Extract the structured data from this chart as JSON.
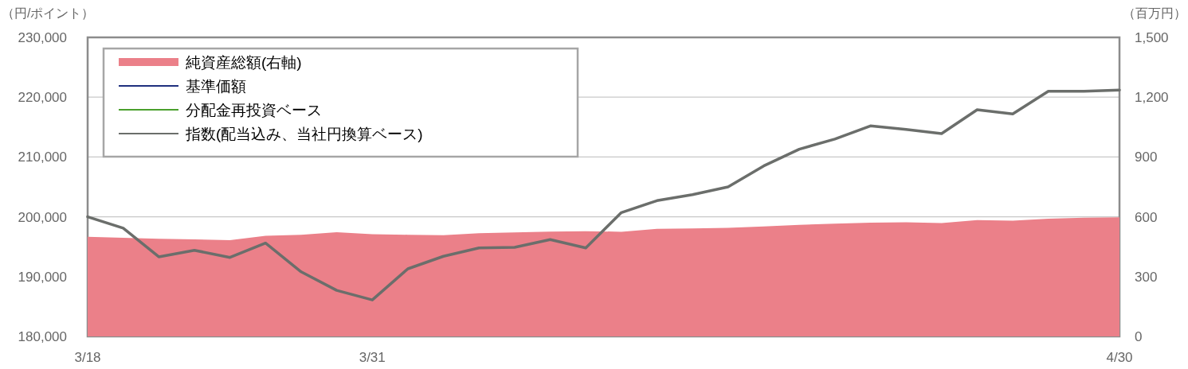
{
  "chart_data": {
    "type": "line",
    "ylabel": "（円/ポイント）",
    "y2label": "（百万円）",
    "categories": [
      "3/18",
      null,
      null,
      null,
      null,
      null,
      null,
      null,
      "3/31",
      null,
      null,
      null,
      null,
      null,
      null,
      null,
      null,
      null,
      null,
      null,
      null,
      null,
      null,
      null,
      null,
      null,
      null,
      null,
      null,
      "4/30"
    ],
    "ylim": [
      180000,
      230000
    ],
    "yticks": [
      {
        "value": 180000,
        "label": "180,000"
      },
      {
        "value": 190000,
        "label": "190,000"
      },
      {
        "value": 200000,
        "label": "200,000"
      },
      {
        "value": 210000,
        "label": "210,000"
      },
      {
        "value": 220000,
        "label": "220,000"
      },
      {
        "value": 230000,
        "label": "230,000"
      }
    ],
    "y2lim": [
      0,
      1500
    ],
    "y2ticks": [
      0,
      300,
      600,
      900,
      {
        "value": 1200,
        "label": "1,200"
      },
      {
        "value": 1500,
        "label": "1,500"
      }
    ],
    "grid": "y",
    "legend": "top left",
    "series": [
      {
        "name": "純資産総額(右軸)",
        "type": "area",
        "axis": "y2",
        "color": "#eb8089",
        "values": [
          500,
          495,
          490,
          487,
          483,
          505,
          510,
          523,
          513,
          510,
          508,
          518,
          522,
          526,
          528,
          525,
          540,
          542,
          545,
          552,
          560,
          565,
          570,
          572,
          568,
          583,
          580,
          590,
          595,
          597
        ]
      },
      {
        "name": "基準価額",
        "color": "#1f2f7e",
        "values": [
          null,
          null,
          null,
          null,
          null,
          null,
          null,
          null,
          null,
          null,
          null,
          null,
          null,
          null,
          null,
          null,
          null,
          null,
          null,
          null,
          null,
          null,
          null,
          null,
          null,
          null,
          null,
          null,
          null,
          null
        ]
      },
      {
        "name": "分配金再投資ベース",
        "color": "#4aa02c",
        "values": [
          null,
          null,
          null,
          null,
          null,
          null,
          null,
          null,
          null,
          null,
          null,
          null,
          null,
          null,
          null,
          null,
          null,
          null,
          null,
          null,
          null,
          null,
          null,
          null,
          null,
          null,
          null,
          null,
          null,
          null
        ]
      },
      {
        "name": "指数(配当込み、当社円換算ベース)",
        "color": "#6b6e6b",
        "values": [
          200000,
          198100,
          193300,
          194400,
          193200,
          195600,
          190800,
          187700,
          186100,
          191300,
          193400,
          194800,
          194900,
          196200,
          194800,
          200700,
          202700,
          203700,
          205000,
          208500,
          211300,
          213000,
          215200,
          214600,
          213900,
          217900,
          217200,
          221000,
          221000,
          221200
        ]
      }
    ]
  }
}
